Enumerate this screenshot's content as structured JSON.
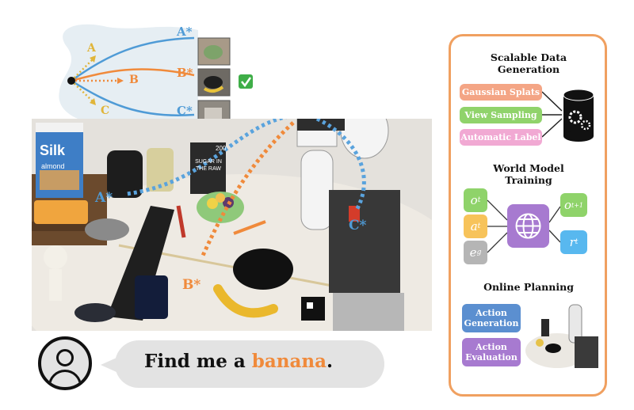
{
  "trajectory_inset": {
    "candidates": [
      {
        "label": "A",
        "star_label": "A*",
        "color": "#e0b53a",
        "star_color": "#4f9bd6"
      },
      {
        "label": "B",
        "star_label": "B*",
        "color": "#f08a3b",
        "star_color": "#f08a3b"
      },
      {
        "label": "C",
        "star_label": "C*",
        "color": "#e0b53a",
        "star_color": "#4f9bd6"
      }
    ],
    "check_icon": "check-box-icon"
  },
  "scene": {
    "milk_brand": "Silk",
    "milk_sub": "almond",
    "box_text_number": "200",
    "box_text_main": "SUGAR IN THE RAW",
    "markers": {
      "a": "A*",
      "b": "B*",
      "c": "C*"
    }
  },
  "chat": {
    "prefix": "Find me a ",
    "highlight": "banana",
    "suffix": ".",
    "highlight_color": "#f08a3b"
  },
  "panel": {
    "border_color": "#f0a060",
    "data_generation": {
      "title_line1": "Scalable Data",
      "title_line2": "Generation",
      "items": [
        {
          "label": "Gaussian Splats",
          "color": "#f4a585"
        },
        {
          "label": "View Sampling",
          "color": "#90d36b"
        },
        {
          "label": "Automatic Label",
          "color": "#f1a9d3"
        }
      ]
    },
    "world_model": {
      "title_line1": "World Model",
      "title_line2": "Training",
      "inputs": [
        {
          "symbol": "o",
          "sub": "t",
          "color": "#8fd36a"
        },
        {
          "symbol": "a",
          "sub": "t",
          "color": "#f7c35a"
        },
        {
          "symbol": "e",
          "sub": "g",
          "color": "#b5b5b5"
        }
      ],
      "outputs": [
        {
          "symbol": "o",
          "sub": "t+1",
          "color": "#8fd36a"
        },
        {
          "symbol": "r",
          "sub": "t",
          "color": "#58b8ef"
        }
      ],
      "model_icon": "globe-icon",
      "model_color": "#a77ad0"
    },
    "online_planning": {
      "title": "Online Planning",
      "items": [
        {
          "line1": "Action",
          "line2": "Generation",
          "color": "#5b8fd0"
        },
        {
          "line1": "Action",
          "line2": "Evaluation",
          "color": "#a77ad0"
        }
      ]
    }
  }
}
